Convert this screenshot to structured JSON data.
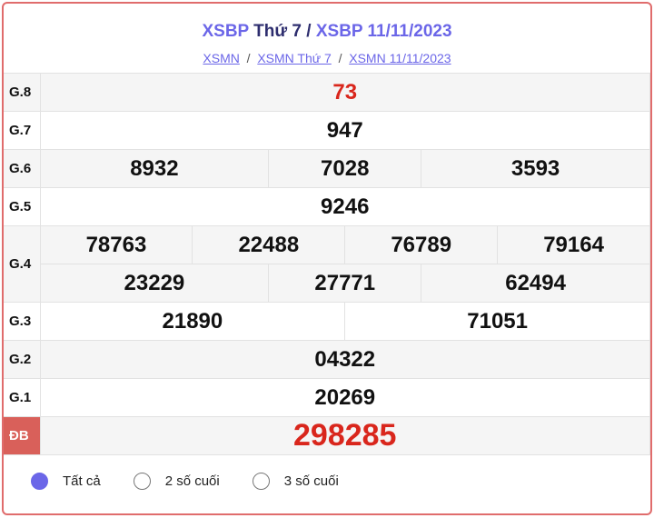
{
  "header": {
    "title_part1": "XSBP",
    "title_part2": "Thứ 7",
    "title_sep": "/",
    "title_part3": "XSBP 11/11/2023"
  },
  "breadcrumb": {
    "items": [
      "XSMN",
      "XSMN Thứ 7",
      "XSMN 11/11/2023"
    ],
    "sep": "/"
  },
  "prizes": {
    "g8": {
      "label": "G.8",
      "values": [
        "73"
      ]
    },
    "g7": {
      "label": "G.7",
      "values": [
        "947"
      ]
    },
    "g6": {
      "label": "G.6",
      "values": [
        "8932",
        "7028",
        "3593"
      ]
    },
    "g5": {
      "label": "G.5",
      "values": [
        "9246"
      ]
    },
    "g4": {
      "label": "G.4",
      "values": [
        "78763",
        "22488",
        "76789",
        "79164",
        "23229",
        "27771",
        "62494"
      ]
    },
    "g3": {
      "label": "G.3",
      "values": [
        "21890",
        "71051"
      ]
    },
    "g2": {
      "label": "G.2",
      "values": [
        "04322"
      ]
    },
    "g1": {
      "label": "G.1",
      "values": [
        "20269"
      ]
    },
    "db": {
      "label": "ĐB",
      "values": [
        "298285"
      ]
    }
  },
  "filter": {
    "options": [
      "Tất cả",
      "2 số cuối",
      "3 số cuối"
    ],
    "selected": "Tất cả"
  },
  "colors": {
    "accent": "#6b66e8",
    "red": "#d9261c",
    "border": "#e06c6c"
  }
}
